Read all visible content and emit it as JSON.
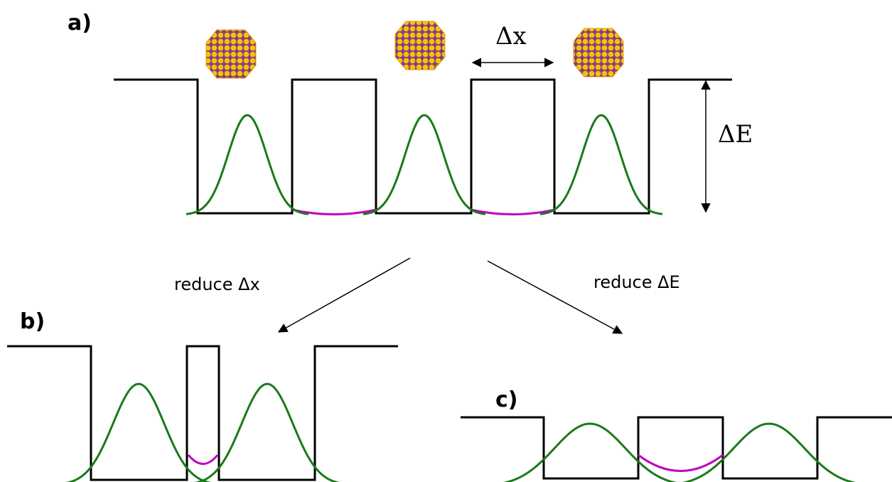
{
  "panels": {
    "a": {
      "label": "a)",
      "dx": "Δx",
      "dE": "ΔE"
    },
    "b": {
      "label": "b)"
    },
    "c": {
      "label": "c)"
    }
  },
  "arrows": {
    "left": "reduce Δx",
    "right": "reduce ΔE"
  }
}
